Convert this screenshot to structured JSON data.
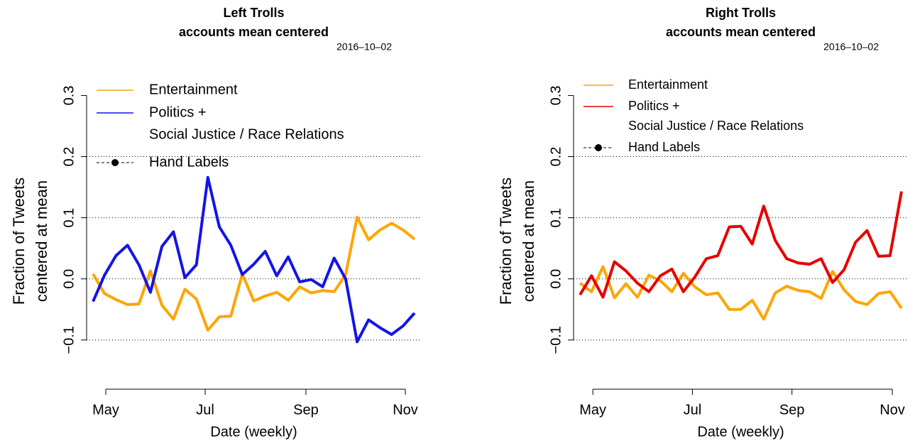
{
  "chart_data": [
    {
      "type": "line",
      "title": "Left Trolls",
      "subtitle": "accounts mean centered",
      "date_label": "2016–10–02",
      "xlabel": "Date (weekly)",
      "ylabel": [
        "Fraction of Tweets",
        "centered at mean"
      ],
      "xlim": [
        -0.56,
        28.56
      ],
      "xticks": [
        {
          "value": 1.11,
          "label": "May"
        },
        {
          "value": 9.77,
          "label": "Jul"
        },
        {
          "value": 18.54,
          "label": "Sep"
        },
        {
          "value": 27.2,
          "label": "Nov"
        }
      ],
      "ylim": [
        -0.17,
        0.34
      ],
      "yticks": [
        {
          "value": -0.1,
          "label": "−0.1"
        },
        {
          "value": 0,
          "label": "0.0"
        },
        0.1,
        0.2,
        0.3
      ],
      "hlines": [
        -0.1,
        0,
        0.1,
        0.2
      ],
      "hand_label": "Hand Labels",
      "series": [
        {
          "name": "Entertainment",
          "color": "#ffa500",
          "values": [
            0.008,
            -0.024,
            -0.034,
            -0.042,
            -0.041,
            0.013,
            -0.043,
            -0.066,
            -0.017,
            -0.033,
            -0.084,
            -0.062,
            -0.061,
            0.008,
            -0.036,
            -0.028,
            -0.022,
            -0.035,
            -0.013,
            -0.023,
            -0.019,
            -0.021,
            0.007,
            0.101,
            0.064,
            0.08,
            0.091,
            0.08,
            0.065
          ]
        },
        {
          "name": [
            "Politics +",
            "Social Justice / Race Relations"
          ],
          "color": "#1414e6",
          "values": [
            -0.037,
            0.006,
            0.038,
            0.055,
            0.023,
            -0.022,
            0.053,
            0.077,
            0.002,
            0.023,
            0.166,
            0.085,
            0.055,
            0.007,
            0.024,
            0.045,
            0.005,
            0.036,
            -0.005,
            -0.001,
            -0.013,
            0.034,
            0.0,
            -0.103,
            -0.067,
            -0.08,
            -0.091,
            -0.077,
            -0.056
          ]
        }
      ]
    },
    {
      "type": "line",
      "title": "Right Trolls",
      "subtitle": "accounts mean centered",
      "date_label": "2016–10–02",
      "xlabel": "Date (weekly)",
      "ylabel": [
        "Fraction of Tweets",
        "centered at mean"
      ],
      "xlim": [
        -0.56,
        28.56
      ],
      "xticks": [
        {
          "value": 1.12,
          "label": "May"
        },
        {
          "value": 9.79,
          "label": "Jul"
        },
        {
          "value": 18.46,
          "label": "Sep"
        },
        {
          "value": 27.2,
          "label": "Nov"
        }
      ],
      "ylim": [
        -0.17,
        0.34
      ],
      "yticks": [
        {
          "value": -0.1,
          "label": "−0.1"
        },
        {
          "value": 0,
          "label": "0.0"
        },
        0.1,
        0.2,
        0.3
      ],
      "hlines": [
        -0.1,
        0,
        0.1,
        0.2
      ],
      "hand_label": "Hand Labels",
      "series": [
        {
          "name": "Entertainment",
          "color": "#ffa500",
          "values": [
            -0.007,
            -0.021,
            0.02,
            -0.031,
            -0.008,
            -0.03,
            0.006,
            -0.003,
            -0.021,
            0.009,
            -0.013,
            -0.026,
            -0.023,
            -0.05,
            -0.05,
            -0.035,
            -0.066,
            -0.023,
            -0.012,
            -0.019,
            -0.021,
            -0.032,
            0.012,
            -0.018,
            -0.037,
            -0.042,
            -0.024,
            -0.021,
            -0.048
          ]
        },
        {
          "name": [
            "Politics +",
            "Social Justice / Race Relations"
          ],
          "color": "#e60000",
          "values": [
            -0.026,
            0.005,
            -0.03,
            0.028,
            0.013,
            -0.007,
            -0.021,
            0.005,
            0.016,
            -0.021,
            0.003,
            0.033,
            0.038,
            0.085,
            0.086,
            0.057,
            0.119,
            0.063,
            0.033,
            0.026,
            0.024,
            0.033,
            -0.006,
            0.015,
            0.06,
            0.079,
            0.037,
            0.038,
            0.143
          ]
        }
      ]
    }
  ]
}
